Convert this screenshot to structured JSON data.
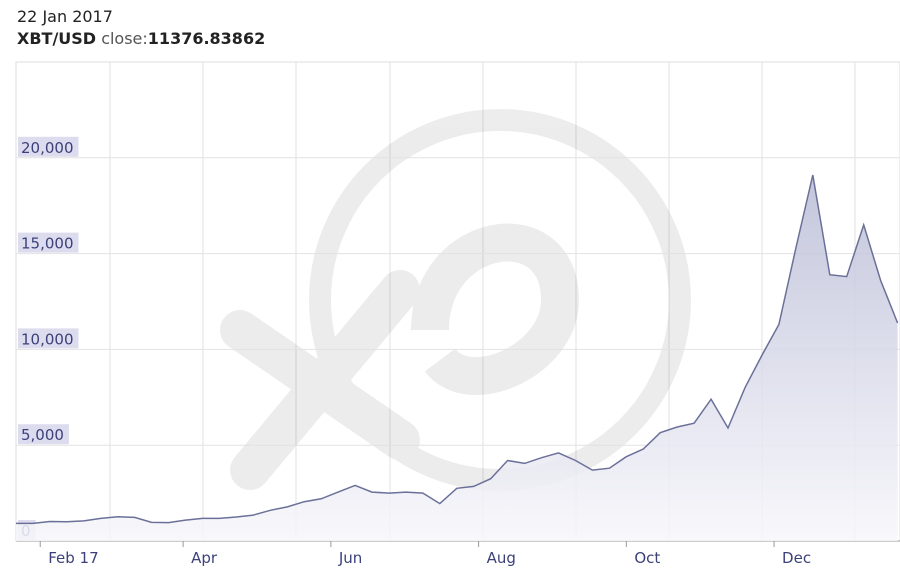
{
  "header": {
    "date": "22 Jan 2017",
    "pair": "XBT/USD",
    "close_label": "close:",
    "close_value": "11376.83862"
  },
  "chart_data": {
    "type": "area",
    "x": [
      "2017-01-22",
      "2017-01-29",
      "2017-02-05",
      "2017-02-12",
      "2017-02-19",
      "2017-02-26",
      "2017-03-05",
      "2017-03-12",
      "2017-03-19",
      "2017-03-26",
      "2017-04-02",
      "2017-04-09",
      "2017-04-16",
      "2017-04-23",
      "2017-04-30",
      "2017-05-07",
      "2017-05-14",
      "2017-05-21",
      "2017-05-28",
      "2017-06-04",
      "2017-06-11",
      "2017-06-18",
      "2017-06-25",
      "2017-07-02",
      "2017-07-09",
      "2017-07-16",
      "2017-07-23",
      "2017-07-30",
      "2017-08-06",
      "2017-08-13",
      "2017-08-20",
      "2017-08-27",
      "2017-09-03",
      "2017-09-10",
      "2017-09-17",
      "2017-09-24",
      "2017-10-01",
      "2017-10-08",
      "2017-10-15",
      "2017-10-22",
      "2017-10-29",
      "2017-11-05",
      "2017-11-12",
      "2017-11-19",
      "2017-11-26",
      "2017-12-03",
      "2017-12-10",
      "2017-12-17",
      "2017-12-24",
      "2017-12-31",
      "2018-01-07",
      "2018-01-14",
      "2018-01-21"
    ],
    "values": [
      920,
      920,
      1020,
      1000,
      1050,
      1180,
      1270,
      1230,
      970,
      960,
      1090,
      1180,
      1180,
      1250,
      1350,
      1600,
      1780,
      2050,
      2200,
      2550,
      2900,
      2550,
      2500,
      2550,
      2500,
      1950,
      2750,
      2850,
      3250,
      4200,
      4050,
      4350,
      4600,
      4200,
      3700,
      3800,
      4400,
      4800,
      5650,
      5950,
      6150,
      7400,
      5900,
      8000,
      9700,
      11300,
      15300,
      19100,
      13900,
      13800,
      16500,
      13600,
      11377
    ],
    "color": "#6b7099",
    "xlim": [
      "2017-01-22",
      "2018-01-22"
    ],
    "xticks": [
      {
        "value": "2017-02-01",
        "label": "Feb 17"
      },
      {
        "value": "2017-04-01",
        "label": "Apr"
      },
      {
        "value": "2017-06-01",
        "label": "Jun"
      },
      {
        "value": "2017-08-01",
        "label": "Aug"
      },
      {
        "value": "2017-10-01",
        "label": "Oct"
      },
      {
        "value": "2017-12-01",
        "label": "Dec"
      }
    ],
    "ylim": [
      0,
      25000
    ],
    "yticks": [
      0,
      {
        "value": 5000,
        "label": "5,000"
      },
      {
        "value": 10000,
        "label": "10,000"
      },
      {
        "value": 15000,
        "label": "15,000"
      },
      {
        "value": 20000,
        "label": "20,000"
      }
    ],
    "grid": true
  }
}
